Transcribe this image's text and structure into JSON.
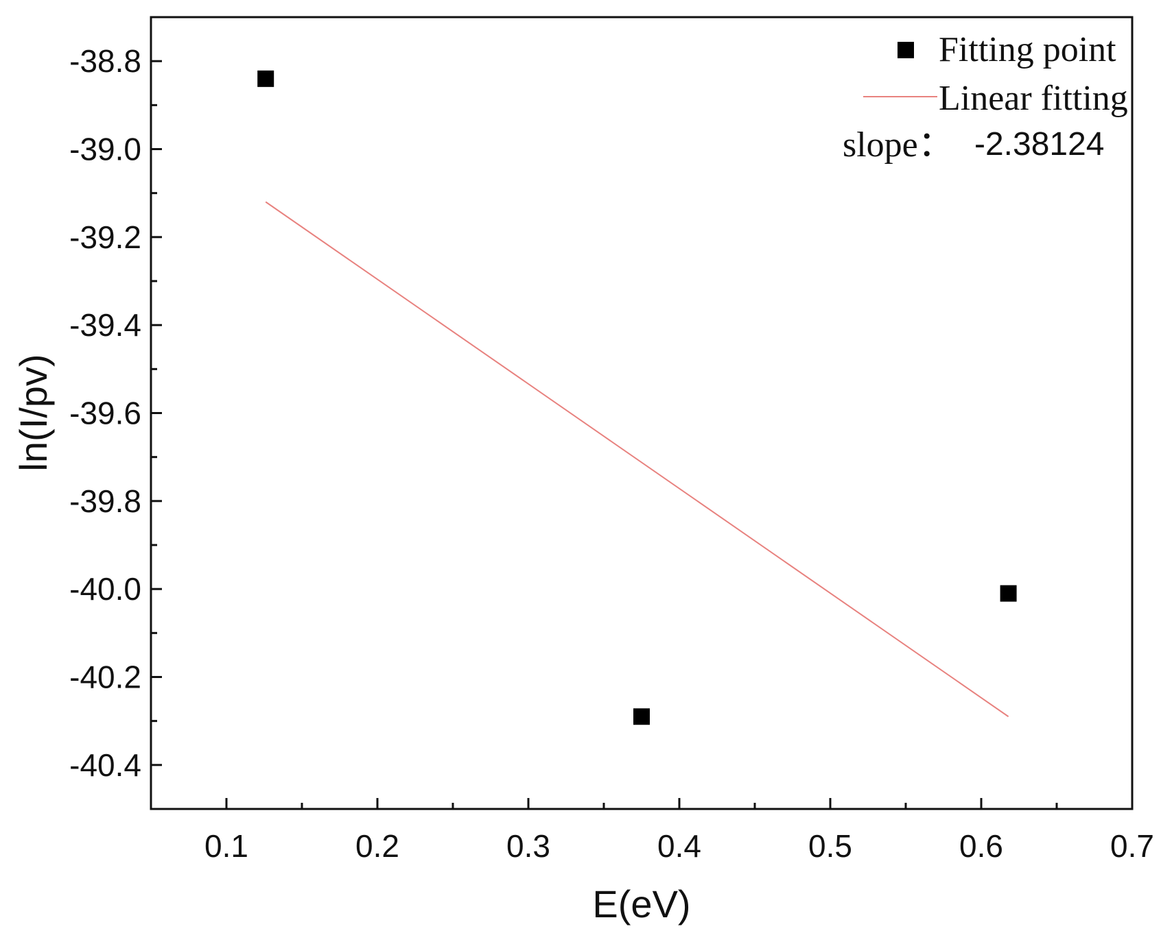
{
  "chart_data": {
    "type": "scatter",
    "xlabel": "E(eV)",
    "ylabel": "ln(I/pv)",
    "xlim": [
      0.05,
      0.7
    ],
    "ylim": [
      -40.5,
      -38.7
    ],
    "x_ticks": [
      "0.1",
      "0.2",
      "0.3",
      "0.4",
      "0.5",
      "0.6",
      "0.7"
    ],
    "y_ticks": [
      "-38.8",
      "-39.0",
      "-39.2",
      "-39.4",
      "-39.6",
      "-39.8",
      "-40.0",
      "-40.2",
      "-40.4"
    ],
    "series": [
      {
        "name": "Fitting point",
        "kind": "scatter",
        "marker": "square",
        "color": "#000000",
        "x": [
          0.126,
          0.375,
          0.618
        ],
        "y": [
          -38.84,
          -40.29,
          -40.01
        ]
      },
      {
        "name": "Linear fitting",
        "kind": "line",
        "color": "#e8827f",
        "x": [
          0.126,
          0.618
        ],
        "y": [
          -39.12,
          -40.29
        ]
      }
    ],
    "annotation": {
      "label": "slope：",
      "value": "-2.38124"
    },
    "legend_position": "top-right",
    "grid": false
  }
}
